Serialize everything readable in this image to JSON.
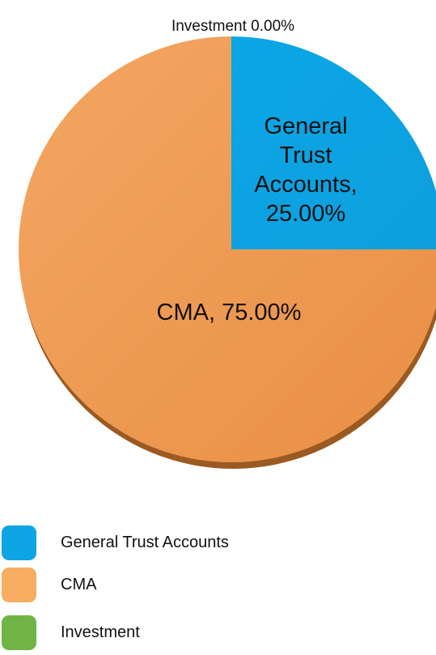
{
  "chart_data": {
    "type": "pie",
    "title": "",
    "start_angle_deg": 0,
    "direction": "clockwise",
    "slices": [
      {
        "label": "General Trust Accounts",
        "value": 25.0,
        "color": "#0ea5e4",
        "data_label_lines": [
          "General",
          "Trust",
          "Accounts,",
          "25.00%"
        ]
      },
      {
        "label": "CMA",
        "value": 75.0,
        "color": "#f0a25c",
        "data_label_lines": [
          "CMA, 75.00%"
        ]
      },
      {
        "label": "Investment",
        "value": 0.0,
        "color": "#70b445",
        "data_label_lines": [
          "Investment 0.00%"
        ]
      }
    ],
    "legend": {
      "placement": "bottom-left",
      "entries": [
        {
          "label": "General Trust Accounts",
          "color": "#0ea5e4"
        },
        {
          "label": "CMA",
          "color": "#f7ad62"
        },
        {
          "label": "Investment",
          "color": "#70b445"
        }
      ]
    }
  }
}
